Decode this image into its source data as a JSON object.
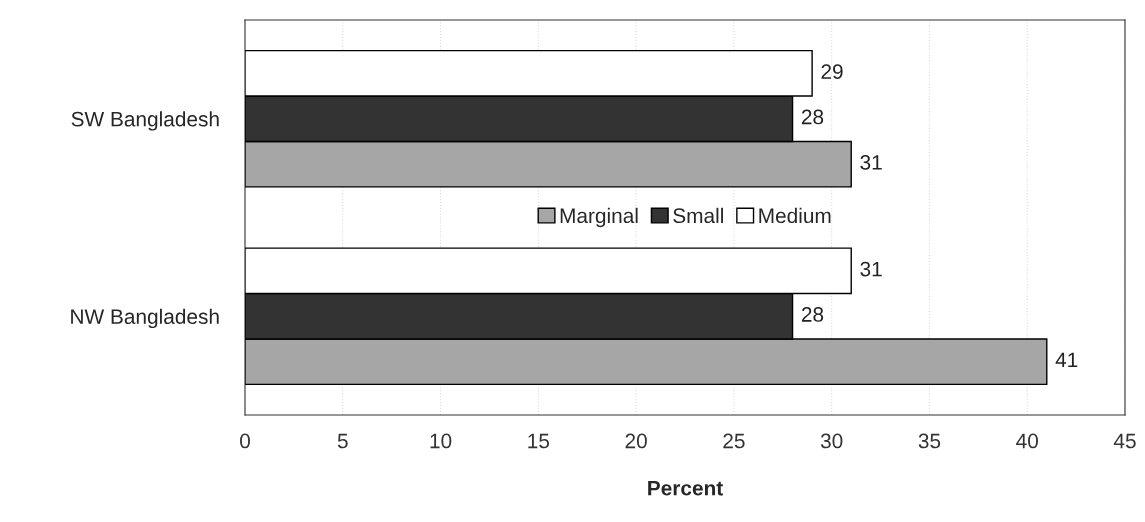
{
  "chart_data": {
    "type": "bar",
    "orientation": "horizontal",
    "xlabel": "Percent",
    "categories": [
      "SW Bangladesh",
      "NW Bangladesh"
    ],
    "series": [
      {
        "name": "Marginal",
        "color": "#a6a6a6",
        "values": [
          31,
          41
        ]
      },
      {
        "name": "Small",
        "color": "#333333",
        "values": [
          28,
          28
        ]
      },
      {
        "name": "Medium",
        "color": "#ffffff",
        "values": [
          29,
          31
        ]
      }
    ],
    "xlim": [
      0,
      45
    ],
    "xticks": [
      0,
      5,
      10,
      15,
      20,
      25,
      30,
      35,
      40,
      45
    ],
    "grid": "x",
    "legend": "center",
    "data_labels": true
  }
}
